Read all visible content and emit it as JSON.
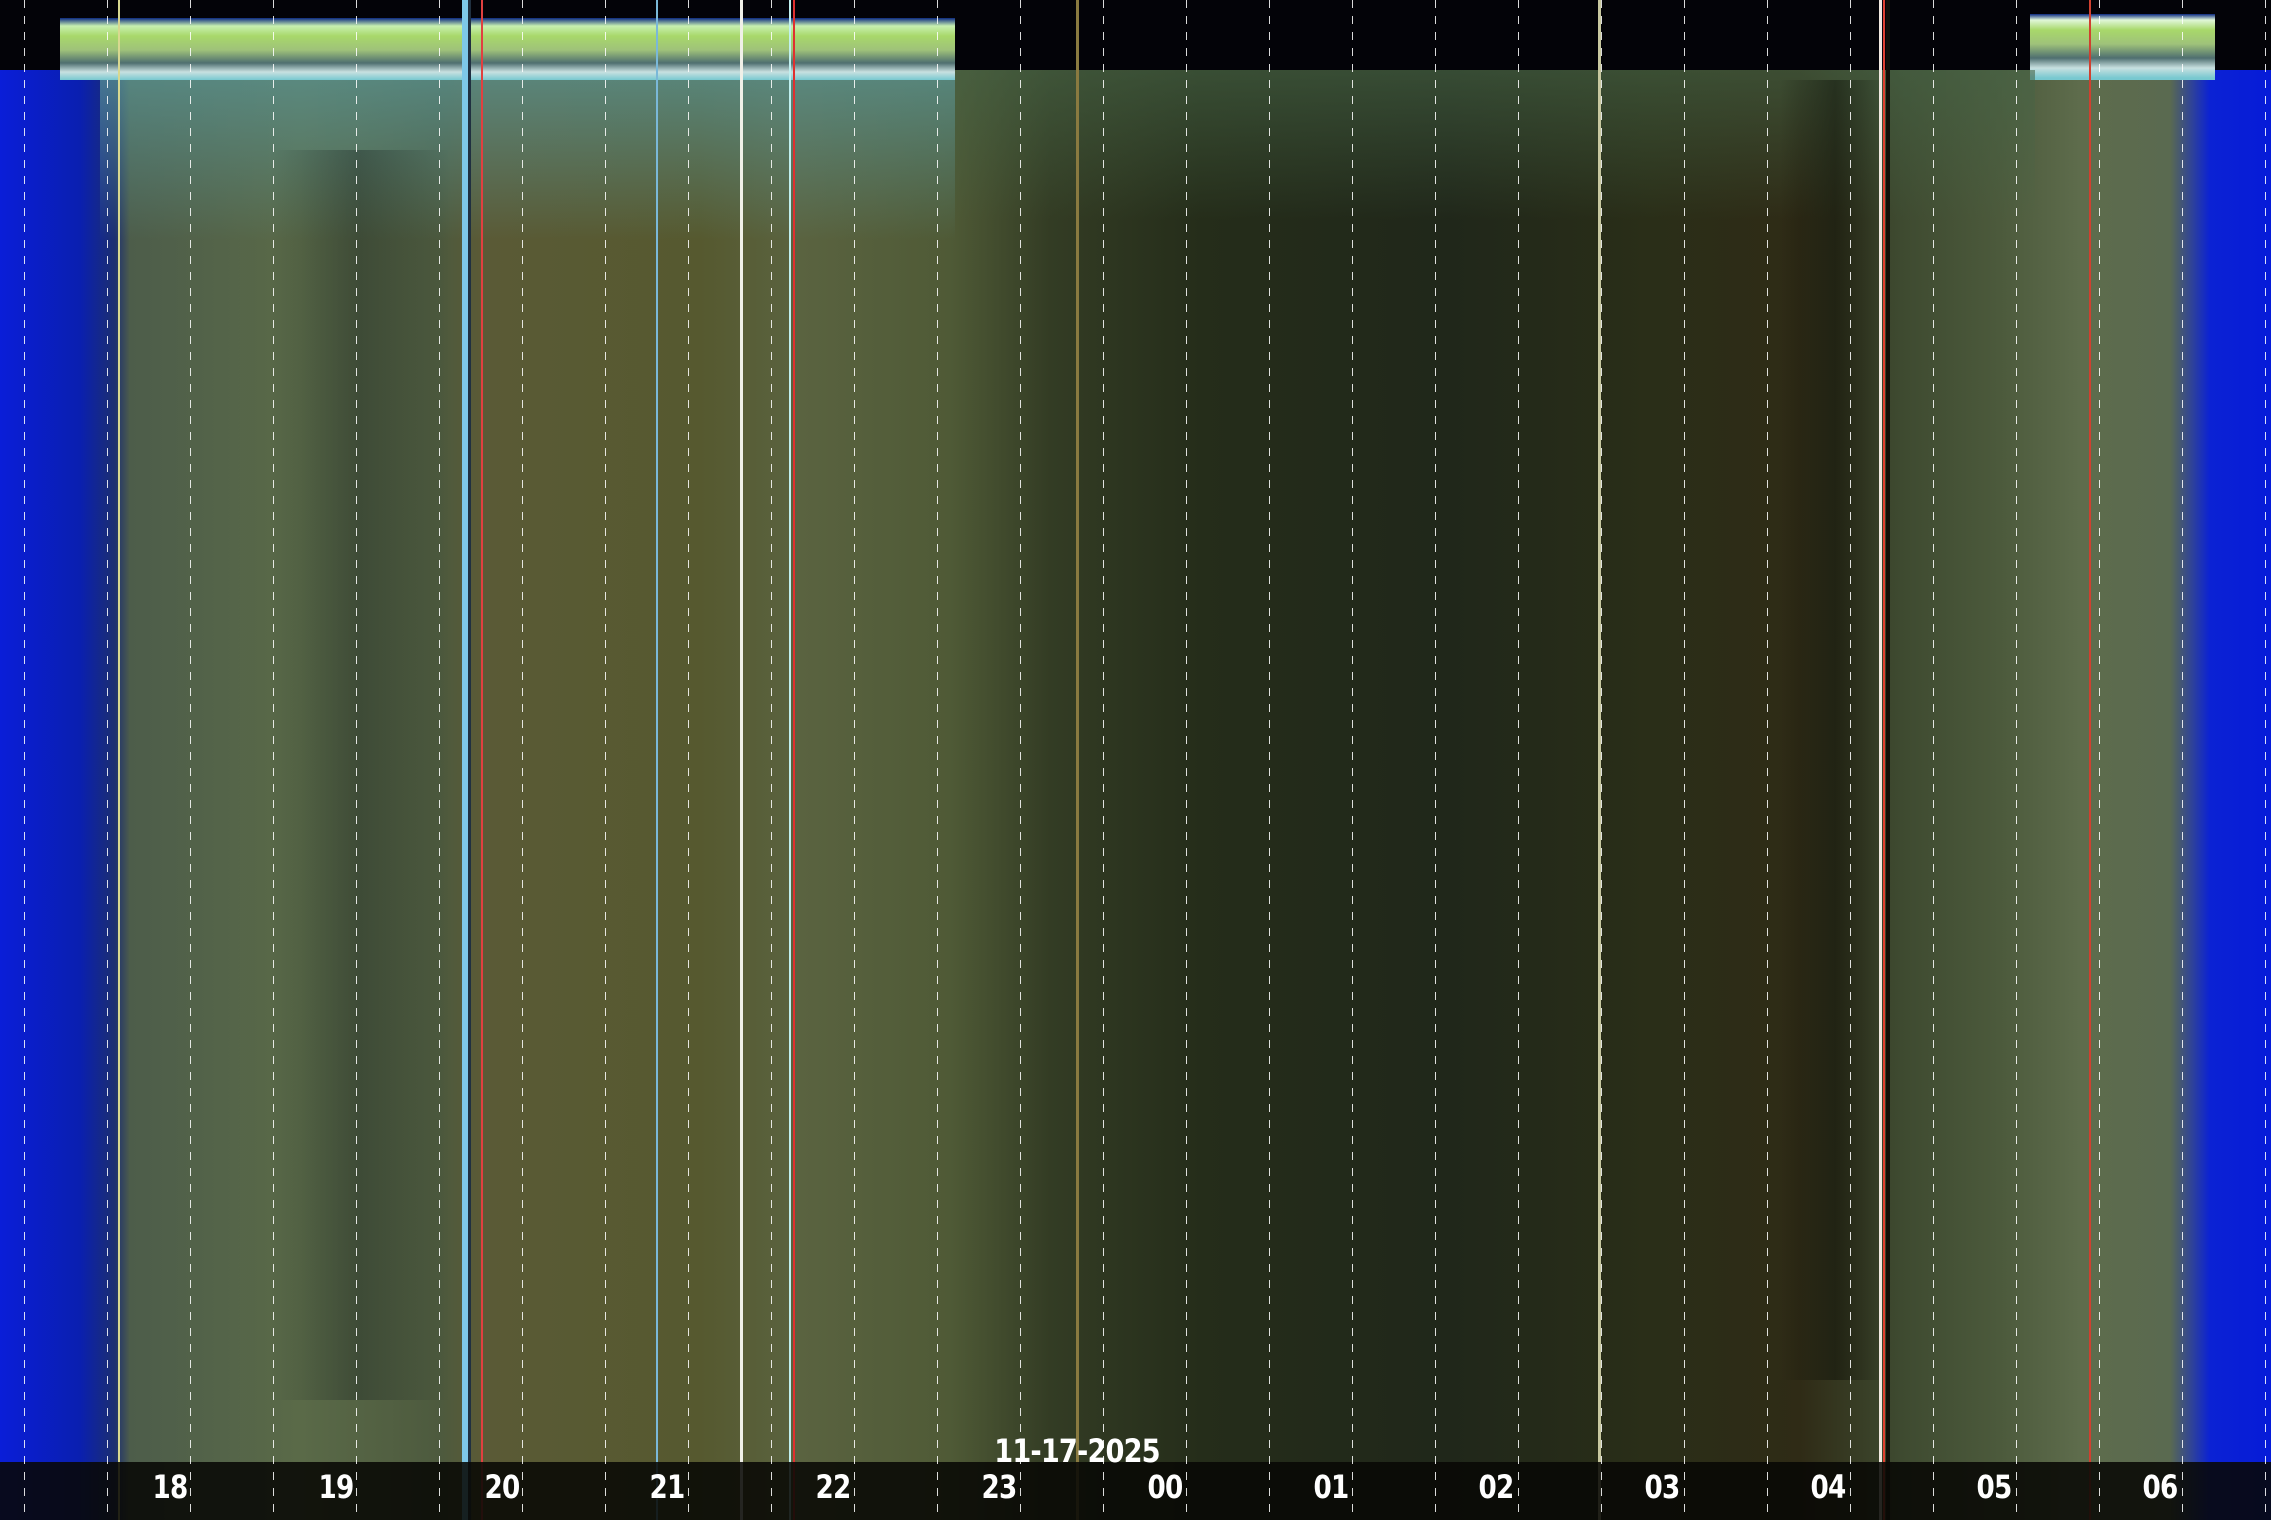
{
  "date": "11-17-2025",
  "hour_labels": [
    "18",
    "19",
    "20",
    "21",
    "22",
    "23",
    "00",
    "01",
    "02",
    "03",
    "04",
    "05",
    "06"
  ],
  "colors": {
    "twilight_blue": "#0a1ed8",
    "night_sky": "#252d1a",
    "label": "#ffffff"
  }
}
